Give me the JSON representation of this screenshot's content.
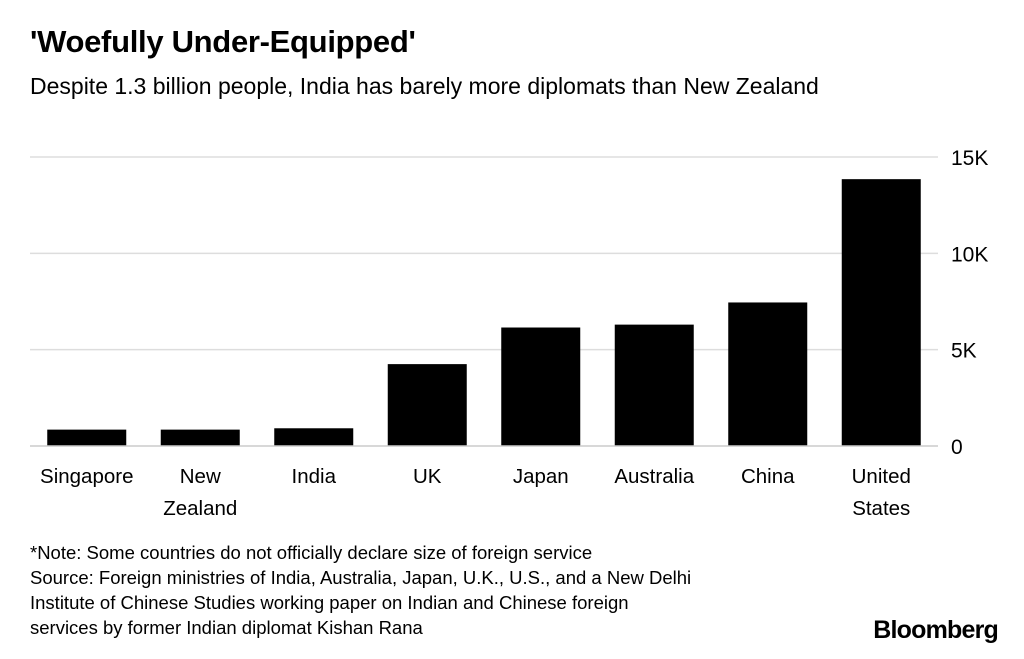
{
  "header": {
    "title": "'Woefully Under-Equipped'",
    "subtitle": "Despite 1.3 billion people, India has barely more diplomats than New Zealand"
  },
  "chart_data": {
    "type": "bar",
    "title": "'Woefully Under-Equipped'",
    "subtitle": "Despite 1.3 billion people, India has barely more diplomats than New Zealand",
    "xlabel": "",
    "ylabel": "",
    "categories": [
      "Singapore",
      "New Zealand",
      "India",
      "UK",
      "Japan",
      "Australia",
      "China",
      "United States"
    ],
    "category_lines": [
      [
        "Singapore"
      ],
      [
        "New",
        "Zealand"
      ],
      [
        "India"
      ],
      [
        "UK"
      ],
      [
        "Japan"
      ],
      [
        "Australia"
      ],
      [
        "China"
      ],
      [
        "United",
        "States"
      ]
    ],
    "values": [
      850,
      850,
      920,
      4250,
      6150,
      6300,
      7450,
      13850
    ],
    "ylim": [
      0,
      15000
    ],
    "yticks": [
      0,
      5000,
      10000,
      15000
    ],
    "ytick_labels": [
      "0",
      "5K",
      "10K",
      "15K"
    ],
    "y_axis_side": "right",
    "grid": true,
    "bar_color": "#000000",
    "grid_color": "#dddddd"
  },
  "footer": {
    "note": "*Note: Some countries do not officially declare size of foreign service",
    "source_lines": [
      "Source: Foreign ministries of India, Australia, Japan, U.K., U.S., and a New Delhi",
      "Institute of Chinese Studies working paper on Indian and Chinese foreign",
      "services by former Indian diplomat Kishan Rana"
    ],
    "brand": "Bloomberg"
  }
}
